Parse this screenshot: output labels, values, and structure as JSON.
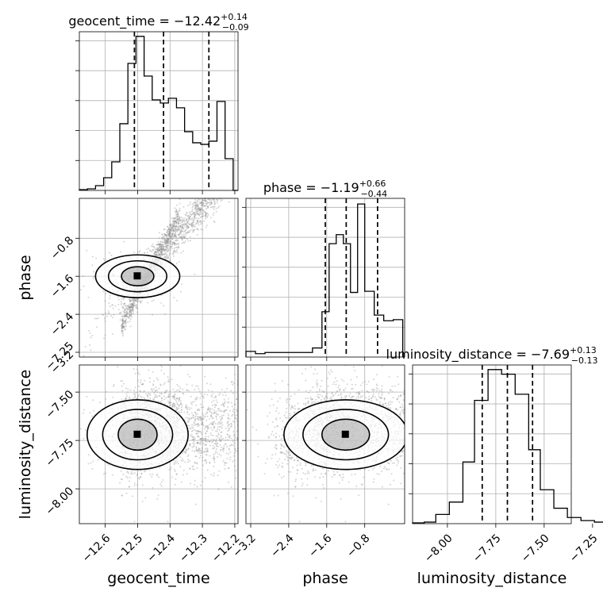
{
  "chart_data": {
    "type": "corner",
    "parameters": [
      "geocent_time",
      "phase",
      "luminosity_distance"
    ],
    "titles": {
      "geocent_time": {
        "prefix": "geocent_time = −12.42",
        "plus": "+0.14",
        "minus": "−0.09"
      },
      "phase": {
        "prefix": "phase = −1.19",
        "plus": "+0.66",
        "minus": "−0.44"
      },
      "luminosity_distance": {
        "prefix": "luminosity_distance = −7.69",
        "plus": "+0.13",
        "minus": "−0.13"
      }
    },
    "axis_labels": {
      "x": [
        "geocent_time",
        "phase",
        "luminosity_distance"
      ],
      "y": [
        "phase",
        "luminosity_distance"
      ]
    },
    "ranges": {
      "geocent_time": [
        -12.68,
        -12.19
      ],
      "phase": [
        -3.3,
        0.04
      ],
      "luminosity_distance": [
        -8.18,
        -7.36
      ]
    },
    "ticks": {
      "geocent_time": {
        "values": [
          -12.6,
          -12.5,
          -12.4,
          -12.3,
          -12.2
        ],
        "labels": [
          "−12.6",
          "−12.5",
          "−12.4",
          "−12.3",
          "−12.2"
        ]
      },
      "phase": {
        "values": [
          -3.2,
          -2.4,
          -1.6,
          -0.8
        ],
        "labels": [
          "−3.2",
          "−2.4",
          "−1.6",
          "−0.8"
        ]
      },
      "luminosity_distance": {
        "values": [
          -8.0,
          -7.75,
          -7.5,
          -7.25
        ],
        "labels": [
          "−8.00",
          "−7.75",
          "−7.50",
          "−7.25"
        ]
      }
    },
    "quantiles": {
      "geocent_time": [
        -12.51,
        -12.42,
        -12.28
      ],
      "phase": [
        -1.63,
        -1.19,
        -0.53
      ],
      "luminosity_distance": [
        -7.82,
        -7.69,
        -7.56
      ]
    },
    "histograms": {
      "geocent_time": {
        "edges": [
          -12.68,
          -12.655,
          -12.63,
          -12.605,
          -12.58,
          -12.555,
          -12.53,
          -12.505,
          -12.48,
          -12.455,
          -12.43,
          -12.405,
          -12.38,
          -12.355,
          -12.33,
          -12.305,
          -12.28,
          -12.255,
          -12.23,
          -12.205,
          -12.19
        ],
        "counts": [
          0.5,
          1,
          3,
          8,
          18,
          42,
          80,
          97,
          72,
          57,
          55,
          58,
          52,
          37,
          30,
          29,
          31,
          56,
          20,
          0
        ]
      },
      "phase": {
        "edges": [
          -3.3,
          -3.1,
          -2.9,
          -2.7,
          -2.5,
          -2.3,
          -2.1,
          -1.9,
          -1.7,
          -1.55,
          -1.4,
          -1.25,
          -1.1,
          -0.95,
          -0.8,
          -0.6,
          -0.4,
          -0.2,
          0.0
        ],
        "counts": [
          5,
          3,
          4,
          4,
          4,
          4,
          4,
          8,
          40,
          100,
          108,
          100,
          57,
          135,
          58,
          37,
          32,
          33
        ],
        "ymax": 140
      },
      "luminosity_distance": {
        "edges": [
          -8.18,
          -8.12,
          -8.06,
          -7.99,
          -7.92,
          -7.86,
          -7.79,
          -7.72,
          -7.65,
          -7.58,
          -7.52,
          -7.45,
          -7.38,
          -7.31,
          -7.24,
          -7.18
        ],
        "counts": [
          0.5,
          1,
          6,
          14,
          40,
          80,
          100,
          97,
          84,
          48,
          22,
          10,
          4,
          2,
          1
        ]
      }
    },
    "grid": true,
    "show_titles": true
  }
}
